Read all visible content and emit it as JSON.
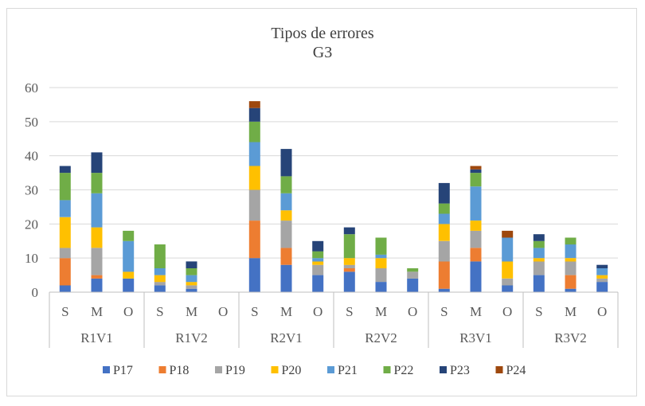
{
  "chart_data": {
    "type": "bar",
    "stacked": true,
    "title": "Tipos de errores",
    "subtitle": "G3",
    "xlabel": "",
    "ylabel": "",
    "ylim": [
      0,
      60
    ],
    "yticks": [
      0,
      10,
      20,
      30,
      40,
      50,
      60
    ],
    "grid": true,
    "legend_position": "bottom",
    "groups": [
      "R1V1",
      "R1V2",
      "R2V1",
      "R2V2",
      "R3V1",
      "R3V2"
    ],
    "subcategories": [
      "S",
      "M",
      "O"
    ],
    "categories": [
      "R1V1 S",
      "R1V1 M",
      "R1V1 O",
      "R1V2 S",
      "R1V2 M",
      "R1V2 O",
      "R2V1 S",
      "R2V1 M",
      "R2V1 O",
      "R2V2 S",
      "R2V2 M",
      "R2V2 O",
      "R3V1 S",
      "R3V1 M",
      "R3V1 O",
      "R3V2 S",
      "R3V2 M",
      "R3V2 O"
    ],
    "series": [
      {
        "name": "P17",
        "color": "#4472C4",
        "values": [
          2,
          4,
          4,
          2,
          1,
          0,
          10,
          8,
          5,
          6,
          3,
          4,
          1,
          9,
          2,
          5,
          1,
          3
        ]
      },
      {
        "name": "P18",
        "color": "#ED7D31",
        "values": [
          8,
          1,
          0,
          0,
          0,
          0,
          11,
          5,
          0,
          1,
          0,
          0,
          8,
          4,
          0,
          0,
          4,
          0
        ]
      },
      {
        "name": "P19",
        "color": "#A5A5A5",
        "values": [
          3,
          8,
          0,
          1,
          1,
          0,
          9,
          8,
          3,
          1,
          4,
          2,
          6,
          5,
          2,
          4,
          4,
          1
        ]
      },
      {
        "name": "P20",
        "color": "#FFC000",
        "values": [
          9,
          6,
          2,
          2,
          1,
          0,
          7,
          3,
          1,
          2,
          3,
          0,
          5,
          3,
          5,
          1,
          1,
          1
        ]
      },
      {
        "name": "P21",
        "color": "#5B9BD5",
        "values": [
          5,
          10,
          9,
          2,
          2,
          0,
          7,
          5,
          1,
          0,
          1,
          0,
          3,
          10,
          7,
          3,
          4,
          2
        ]
      },
      {
        "name": "P22",
        "color": "#70AD47",
        "values": [
          8,
          6,
          3,
          7,
          2,
          0,
          6,
          5,
          2,
          7,
          5,
          1,
          3,
          4,
          0,
          2,
          2,
          0
        ]
      },
      {
        "name": "P23",
        "color": "#264478",
        "values": [
          2,
          6,
          0,
          0,
          2,
          0,
          4,
          8,
          3,
          2,
          0,
          0,
          6,
          1,
          0,
          2,
          0,
          1
        ]
      },
      {
        "name": "P24",
        "color": "#9E480E",
        "values": [
          0,
          0,
          0,
          0,
          0,
          0,
          2,
          0,
          0,
          0,
          0,
          0,
          0,
          1,
          2,
          0,
          0,
          0
        ]
      }
    ]
  }
}
